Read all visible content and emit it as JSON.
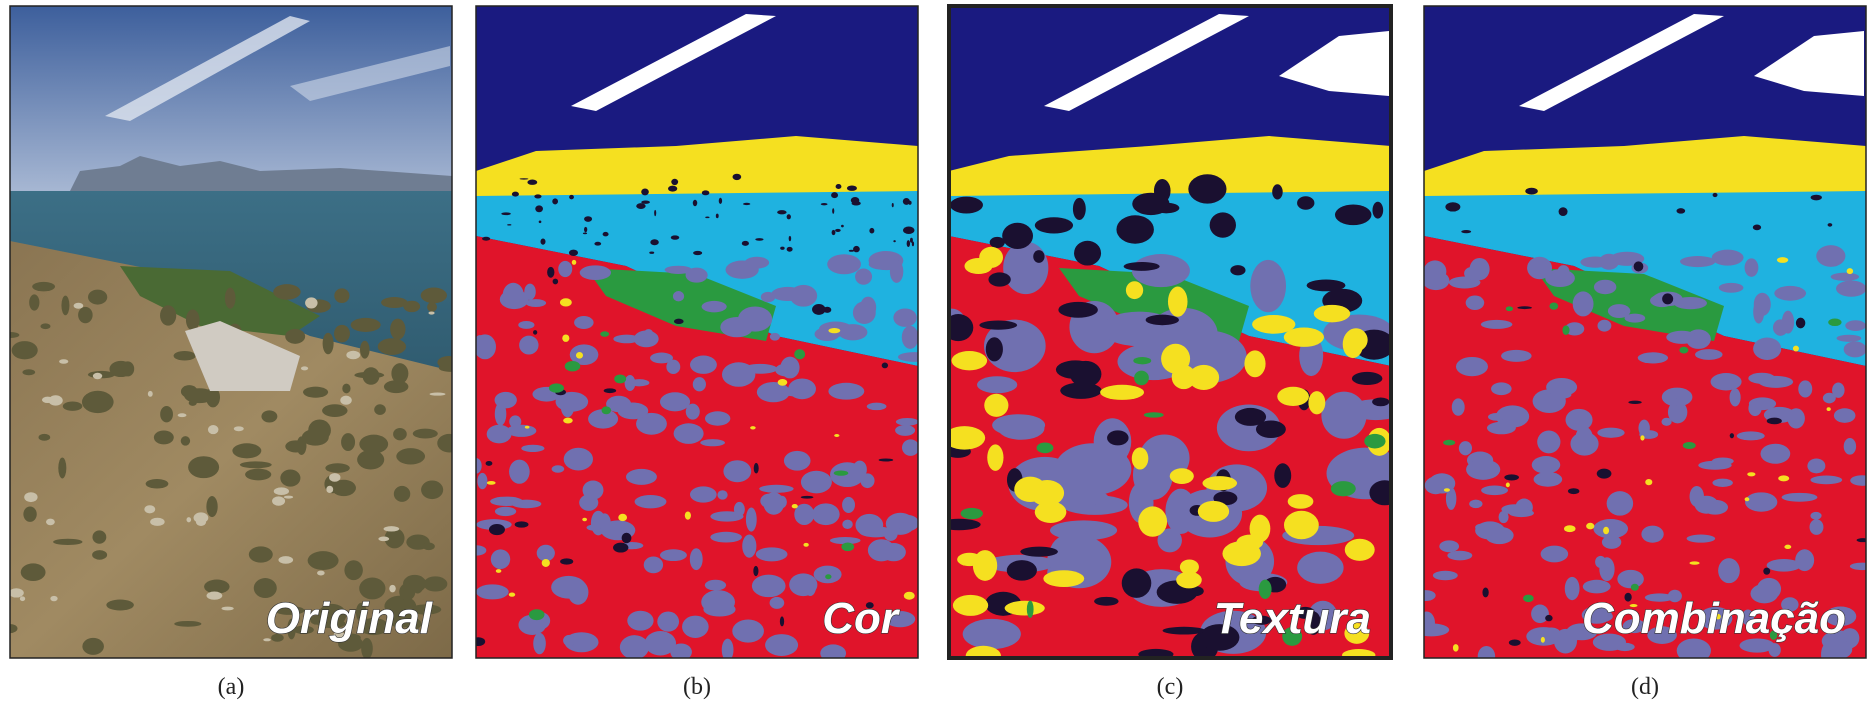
{
  "panels": [
    {
      "label": "Original",
      "caption": "(a)"
    },
    {
      "label": "Cor",
      "caption": "(b)"
    },
    {
      "label": "Textura",
      "caption": "(c)"
    },
    {
      "label": "Combinação",
      "caption": "(d)"
    }
  ]
}
